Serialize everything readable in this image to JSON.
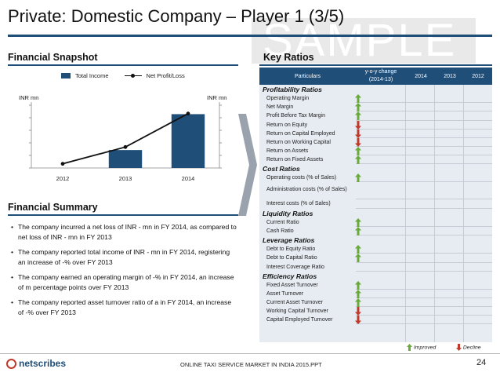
{
  "title": "Private: Domestic Company – Player 1 (3/5)",
  "watermark": "SAMPLE",
  "financial_snapshot": {
    "title": "Financial Snapshot",
    "legend": {
      "bar": "Total Income",
      "line": "Net Profit/Loss"
    },
    "unit_left": "INR mn",
    "unit_right": "INR mn"
  },
  "chart_data": {
    "type": "bar",
    "categories": [
      "2012",
      "2013",
      "2014"
    ],
    "series": [
      {
        "name": "Total Income",
        "type": "bar",
        "axis": "left",
        "values": [
          0,
          2,
          6
        ]
      },
      {
        "name": "Net Profit/Loss",
        "type": "line",
        "axis": "right",
        "values": [
          0,
          1,
          3
        ]
      }
    ],
    "ylim_left": [
      0,
      7
    ],
    "ylim_right": [
      -0.25,
      3.5
    ],
    "colors": {
      "bar": "#1f4e79",
      "line": "#111111"
    }
  },
  "financial_summary": {
    "title": "Financial Summary",
    "bullets": [
      "The company incurred a net loss of INR - mn in FY 2014, as compared to net loss of INR - mn in FY 2013",
      "The company reported total income of INR - mn in FY 2014, registering an increase of -% over FY 2013",
      "The company earned an operating margin of -% in FY 2014, an increase of m percentage points over FY 2013",
      "The company reported asset turnover ratio of a in FY 2014, an increase of -% over FY 2013"
    ]
  },
  "key_ratios": {
    "title": "Key Ratios",
    "headers": {
      "particulars": "Particulars",
      "yoy": "y-o-y change (2014-13)",
      "y2014": "2014",
      "y2013": "2013",
      "y2012": "2012"
    },
    "sections": [
      {
        "name": "Profitability Ratios",
        "rows": [
          {
            "label": "Operating Margin",
            "trend": "up"
          },
          {
            "label": "Net Margin",
            "trend": "up"
          },
          {
            "label": "Profit Before Tax Margin",
            "trend": "up"
          },
          {
            "label": "Return on Equity",
            "trend": "down"
          },
          {
            "label": "Return on Capital Employed",
            "trend": "down"
          },
          {
            "label": "Return on Working Capital",
            "trend": "down"
          },
          {
            "label": "Return on Assets",
            "trend": "up"
          },
          {
            "label": "Return on Fixed Assets",
            "trend": "up"
          }
        ]
      },
      {
        "name": "Cost Ratios",
        "rows": [
          {
            "label": "Operating costs (% of Sales)",
            "trend": "up"
          },
          {
            "label": "Administration costs (% of Sales)",
            "trend": ""
          },
          {
            "label": "Interest costs (% of Sales)",
            "trend": ""
          }
        ]
      },
      {
        "name": "Liquidity Ratios",
        "rows": [
          {
            "label": "Current Ratio",
            "trend": "up"
          },
          {
            "label": "Cash Ratio",
            "trend": "up"
          }
        ]
      },
      {
        "name": "Leverage Ratios",
        "rows": [
          {
            "label": "Debt to Equity Ratio",
            "trend": "up"
          },
          {
            "label": "Debt to Capital Ratio",
            "trend": "up"
          },
          {
            "label": "Interest Coverage Ratio",
            "trend": ""
          }
        ]
      },
      {
        "name": "Efficiency Ratios",
        "rows": [
          {
            "label": "Fixed Asset Turnover",
            "trend": "up"
          },
          {
            "label": "Asset Turnover",
            "trend": "up"
          },
          {
            "label": "Current Asset Turnover",
            "trend": "up"
          },
          {
            "label": "Working Capital Turnover",
            "trend": "down"
          },
          {
            "label": "Capital Employed Turnover",
            "trend": "down"
          }
        ]
      }
    ],
    "legend": {
      "improved": "Improved",
      "decline": "Decline"
    },
    "colors": {
      "up": "#6aaa3a",
      "down": "#c0392b"
    }
  },
  "footer": {
    "logo": "netscribes",
    "text": "ONLINE TAXI SERVICE MARKET IN INDIA 2015.PPT",
    "page": "24"
  }
}
